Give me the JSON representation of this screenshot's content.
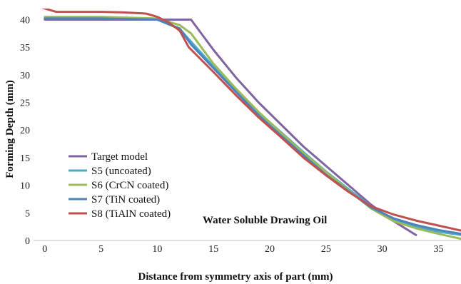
{
  "chart_data": {
    "type": "line",
    "title": "",
    "xlabel": "Distance from symmetry axis of part (mm)",
    "ylabel": "Forming Depth (mm)",
    "xlim": [
      -1,
      37
    ],
    "ylim": [
      0,
      42
    ],
    "xticks": [
      0,
      5,
      10,
      15,
      20,
      25,
      30,
      35
    ],
    "yticks": [
      0,
      5,
      10,
      15,
      20,
      25,
      30,
      35,
      40
    ],
    "grid": false,
    "legend_position": "left",
    "annotation": "Water Soluble Drawing Oil",
    "series": [
      {
        "name": "Target model",
        "color": "#8064a2",
        "points": [
          [
            0,
            40
          ],
          [
            5,
            40
          ],
          [
            10,
            40
          ],
          [
            13,
            40
          ],
          [
            15,
            34.5
          ],
          [
            17,
            29.5
          ],
          [
            19,
            25
          ],
          [
            21,
            21
          ],
          [
            23,
            17
          ],
          [
            25,
            13.5
          ],
          [
            27,
            10
          ],
          [
            29,
            6.5
          ],
          [
            31,
            3.5
          ],
          [
            33,
            1
          ]
        ]
      },
      {
        "name": "S5 (uncoated)",
        "color": "#4bacc6",
        "points": [
          [
            0,
            40.3
          ],
          [
            5,
            40.3
          ],
          [
            10,
            40
          ],
          [
            12,
            38.3
          ],
          [
            13,
            36
          ],
          [
            15,
            31.5
          ],
          [
            17,
            27.2
          ],
          [
            19,
            23.2
          ],
          [
            21,
            19.6
          ],
          [
            23,
            16
          ],
          [
            25,
            12.5
          ],
          [
            27,
            9.3
          ],
          [
            29,
            6.2
          ],
          [
            31,
            3.8
          ],
          [
            33,
            2.5
          ],
          [
            35,
            1.6
          ],
          [
            37,
            1
          ]
        ]
      },
      {
        "name": "S6 (CrCN coated)",
        "color": "#9bbb59",
        "points": [
          [
            0,
            40.5
          ],
          [
            5,
            40.5
          ],
          [
            10,
            40.2
          ],
          [
            12,
            39
          ],
          [
            13,
            37.5
          ],
          [
            15,
            32
          ],
          [
            17,
            27.5
          ],
          [
            19,
            23.3
          ],
          [
            21,
            19.5
          ],
          [
            23,
            15.8
          ],
          [
            25,
            12.4
          ],
          [
            27,
            9.1
          ],
          [
            29,
            5.8
          ],
          [
            31,
            3.5
          ],
          [
            33,
            2.2
          ],
          [
            35,
            1.2
          ],
          [
            37,
            0.3
          ]
        ]
      },
      {
        "name": "S7 (TiN coated)",
        "color": "#4f81bd",
        "points": [
          [
            0,
            40.2
          ],
          [
            5,
            40.2
          ],
          [
            10,
            40
          ],
          [
            12,
            38.4
          ],
          [
            13,
            35.5
          ],
          [
            15,
            31.2
          ],
          [
            17,
            26.9
          ],
          [
            19,
            22.7
          ],
          [
            21,
            19
          ],
          [
            23,
            15.4
          ],
          [
            25,
            11.9
          ],
          [
            27,
            8.9
          ],
          [
            29,
            6
          ],
          [
            31,
            4
          ],
          [
            33,
            2.8
          ],
          [
            35,
            1.9
          ],
          [
            37,
            1.2
          ]
        ]
      },
      {
        "name": "S8 (TiAlN coated)",
        "color": "#c0504d",
        "points": [
          [
            -0.3,
            42.2
          ],
          [
            1,
            41.4
          ],
          [
            5,
            41.4
          ],
          [
            7,
            41.3
          ],
          [
            9,
            41.1
          ],
          [
            10,
            40.5
          ],
          [
            11,
            39.5
          ],
          [
            12,
            38
          ],
          [
            12.8,
            35
          ],
          [
            15,
            30.5
          ],
          [
            17,
            26.3
          ],
          [
            19,
            22.3
          ],
          [
            21,
            18.7
          ],
          [
            23,
            15
          ],
          [
            25,
            11.8
          ],
          [
            27,
            8.8
          ],
          [
            29,
            6.2
          ],
          [
            31,
            4.7
          ],
          [
            33,
            3.6
          ],
          [
            35,
            2.7
          ],
          [
            37,
            1.8
          ]
        ]
      }
    ]
  }
}
